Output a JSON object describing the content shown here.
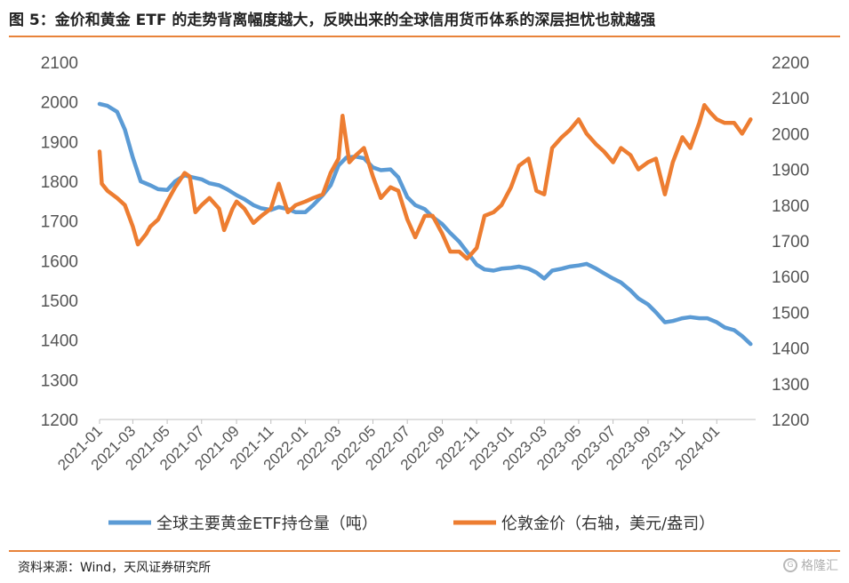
{
  "header": {
    "title": "图 5：金价和黄金 ETF 的走势背离幅度越大，反映出来的全球信用货币体系的深层担忧也就越强"
  },
  "footer": {
    "source": "资料来源：Wind，天风证券研究所",
    "watermark": "格隆汇"
  },
  "colors": {
    "etf": "#5b9bd5",
    "gold": "#ed7d31",
    "rule": "#e8833a"
  },
  "chart_data": {
    "type": "line",
    "x_ticks": [
      "2021-01",
      "2021-03",
      "2021-05",
      "2021-07",
      "2021-09",
      "2021-11",
      "2022-01",
      "2022-03",
      "2022-05",
      "2022-07",
      "2022-09",
      "2022-11",
      "2023-01",
      "2023-03",
      "2023-05",
      "2023-07",
      "2023-09",
      "2023-11",
      "2024-01"
    ],
    "y_left": {
      "min": 1200,
      "max": 2100,
      "ticks": [
        1200,
        1300,
        1400,
        1500,
        1600,
        1700,
        1800,
        1900,
        2000,
        2100
      ]
    },
    "y_right": {
      "min": 1200,
      "max": 2200,
      "ticks": [
        1200,
        1300,
        1400,
        1500,
        1600,
        1700,
        1800,
        1900,
        2000,
        2100,
        2200
      ]
    },
    "legend_position": "bottom",
    "series": [
      {
        "name": "全球主要黄金ETF持仓量（吨）",
        "axis": "left",
        "points": [
          [
            "2021-01",
            1995
          ],
          [
            "2021-01-15",
            1990
          ],
          [
            "2021-02",
            1975
          ],
          [
            "2021-02-15",
            1930
          ],
          [
            "2021-03",
            1860
          ],
          [
            "2021-03-15",
            1800
          ],
          [
            "2021-04",
            1790
          ],
          [
            "2021-04-15",
            1780
          ],
          [
            "2021-05",
            1778
          ],
          [
            "2021-05-15",
            1800
          ],
          [
            "2021-06",
            1815
          ],
          [
            "2021-06-15",
            1810
          ],
          [
            "2021-07",
            1805
          ],
          [
            "2021-07-15",
            1795
          ],
          [
            "2021-08",
            1790
          ],
          [
            "2021-08-15",
            1780
          ],
          [
            "2021-09",
            1765
          ],
          [
            "2021-09-15",
            1755
          ],
          [
            "2021-10",
            1740
          ],
          [
            "2021-10-15",
            1732
          ],
          [
            "2021-11",
            1728
          ],
          [
            "2021-11-15",
            1735
          ],
          [
            "2021-12",
            1730
          ],
          [
            "2021-12-15",
            1722
          ],
          [
            "2022-01",
            1722
          ],
          [
            "2022-01-15",
            1740
          ],
          [
            "2022-02",
            1765
          ],
          [
            "2022-02-15",
            1790
          ],
          [
            "2022-03",
            1840
          ],
          [
            "2022-03-15",
            1860
          ],
          [
            "2022-04",
            1862
          ],
          [
            "2022-04-15",
            1858
          ],
          [
            "2022-05",
            1835
          ],
          [
            "2022-05-15",
            1828
          ],
          [
            "2022-06",
            1830
          ],
          [
            "2022-06-15",
            1810
          ],
          [
            "2022-07",
            1760
          ],
          [
            "2022-07-15",
            1740
          ],
          [
            "2022-08",
            1730
          ],
          [
            "2022-08-15",
            1710
          ],
          [
            "2022-09",
            1692
          ],
          [
            "2022-09-15",
            1670
          ],
          [
            "2022-10",
            1648
          ],
          [
            "2022-10-15",
            1622
          ],
          [
            "2022-11",
            1590
          ],
          [
            "2022-11-15",
            1578
          ],
          [
            "2022-12",
            1575
          ],
          [
            "2022-12-15",
            1580
          ],
          [
            "2023-01",
            1582
          ],
          [
            "2023-01-15",
            1585
          ],
          [
            "2023-02",
            1580
          ],
          [
            "2023-02-15",
            1570
          ],
          [
            "2023-03",
            1555
          ],
          [
            "2023-03-15",
            1575
          ],
          [
            "2023-04",
            1580
          ],
          [
            "2023-04-15",
            1585
          ],
          [
            "2023-05",
            1588
          ],
          [
            "2023-05-15",
            1592
          ],
          [
            "2023-06",
            1580
          ],
          [
            "2023-06-15",
            1568
          ],
          [
            "2023-07",
            1555
          ],
          [
            "2023-07-15",
            1545
          ],
          [
            "2023-08",
            1525
          ],
          [
            "2023-08-15",
            1505
          ],
          [
            "2023-09",
            1490
          ],
          [
            "2023-09-15",
            1470
          ],
          [
            "2023-10",
            1445
          ],
          [
            "2023-10-15",
            1448
          ],
          [
            "2023-11",
            1455
          ],
          [
            "2023-11-15",
            1458
          ],
          [
            "2023-12",
            1455
          ],
          [
            "2023-12-15",
            1455
          ],
          [
            "2024-01",
            1445
          ],
          [
            "2024-01-15",
            1432
          ],
          [
            "2024-02",
            1425
          ],
          [
            "2024-02-15",
            1410
          ],
          [
            "2024-03",
            1390
          ]
        ]
      },
      {
        "name": "伦敦金价（右轴，美元/盎司）",
        "axis": "right",
        "points": [
          [
            "2021-01",
            1950
          ],
          [
            "2021-01-05",
            1860
          ],
          [
            "2021-01-15",
            1840
          ],
          [
            "2021-02",
            1820
          ],
          [
            "2021-02-15",
            1800
          ],
          [
            "2021-03",
            1740
          ],
          [
            "2021-03-10",
            1690
          ],
          [
            "2021-03-25",
            1720
          ],
          [
            "2021-04",
            1740
          ],
          [
            "2021-04-15",
            1760
          ],
          [
            "2021-05",
            1810
          ],
          [
            "2021-05-15",
            1850
          ],
          [
            "2021-06",
            1890
          ],
          [
            "2021-06-10",
            1880
          ],
          [
            "2021-06-20",
            1780
          ],
          [
            "2021-07",
            1800
          ],
          [
            "2021-07-15",
            1820
          ],
          [
            "2021-08",
            1790
          ],
          [
            "2021-08-10",
            1730
          ],
          [
            "2021-08-25",
            1790
          ],
          [
            "2021-09",
            1810
          ],
          [
            "2021-09-15",
            1790
          ],
          [
            "2021-10",
            1750
          ],
          [
            "2021-10-15",
            1770
          ],
          [
            "2021-11",
            1790
          ],
          [
            "2021-11-15",
            1860
          ],
          [
            "2021-12",
            1780
          ],
          [
            "2021-12-15",
            1800
          ],
          [
            "2022-01",
            1810
          ],
          [
            "2022-01-15",
            1820
          ],
          [
            "2022-02",
            1830
          ],
          [
            "2022-02-15",
            1890
          ],
          [
            "2022-03",
            1930
          ],
          [
            "2022-03-08",
            2050
          ],
          [
            "2022-03-20",
            1920
          ],
          [
            "2022-04",
            1940
          ],
          [
            "2022-04-15",
            1960
          ],
          [
            "2022-05",
            1880
          ],
          [
            "2022-05-15",
            1820
          ],
          [
            "2022-06",
            1850
          ],
          [
            "2022-06-15",
            1840
          ],
          [
            "2022-07",
            1760
          ],
          [
            "2022-07-15",
            1710
          ],
          [
            "2022-08",
            1770
          ],
          [
            "2022-08-15",
            1770
          ],
          [
            "2022-09",
            1720
          ],
          [
            "2022-09-15",
            1670
          ],
          [
            "2022-10",
            1670
          ],
          [
            "2022-10-15",
            1650
          ],
          [
            "2022-11",
            1680
          ],
          [
            "2022-11-15",
            1770
          ],
          [
            "2022-12",
            1780
          ],
          [
            "2022-12-15",
            1800
          ],
          [
            "2023-01",
            1850
          ],
          [
            "2023-01-15",
            1910
          ],
          [
            "2023-02",
            1930
          ],
          [
            "2023-02-15",
            1840
          ],
          [
            "2023-03",
            1830
          ],
          [
            "2023-03-15",
            1960
          ],
          [
            "2023-04",
            1990
          ],
          [
            "2023-04-15",
            2010
          ],
          [
            "2023-05",
            2040
          ],
          [
            "2023-05-15",
            2000
          ],
          [
            "2023-06",
            1970
          ],
          [
            "2023-06-15",
            1950
          ],
          [
            "2023-07",
            1920
          ],
          [
            "2023-07-15",
            1960
          ],
          [
            "2023-08",
            1940
          ],
          [
            "2023-08-15",
            1900
          ],
          [
            "2023-09",
            1920
          ],
          [
            "2023-09-15",
            1930
          ],
          [
            "2023-10",
            1830
          ],
          [
            "2023-10-15",
            1920
          ],
          [
            "2023-11",
            1990
          ],
          [
            "2023-11-15",
            1960
          ],
          [
            "2023-12",
            2030
          ],
          [
            "2023-12-10",
            2080
          ],
          [
            "2023-12-20",
            2060
          ],
          [
            "2024-01",
            2040
          ],
          [
            "2024-01-15",
            2030
          ],
          [
            "2024-02",
            2030
          ],
          [
            "2024-02-15",
            2000
          ],
          [
            "2024-03",
            2040
          ]
        ]
      }
    ]
  }
}
